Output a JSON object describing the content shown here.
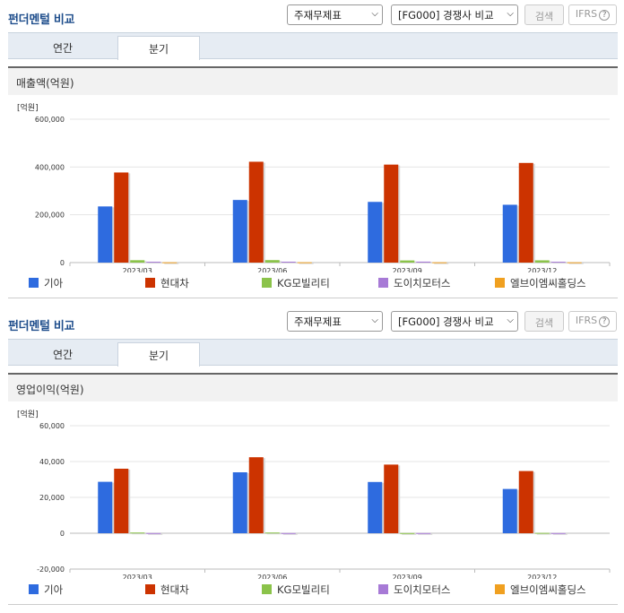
{
  "panels": [
    {
      "title": "펀더멘털 비교",
      "select_statement": "주재무제표",
      "select_group": "[FG000] 경쟁사 비교",
      "search_label": "검색",
      "ifrs_label": "IFRS",
      "help_glyph": "?",
      "tabs": [
        "연간",
        "분기"
      ],
      "active_tab": "분기",
      "metric": "매출액(억원)",
      "unit": "[억원]"
    },
    {
      "title": "펀더멘털 비교",
      "select_statement": "주재무제표",
      "select_group": "[FG000] 경쟁사 비교",
      "search_label": "검색",
      "ifrs_label": "IFRS",
      "help_glyph": "?",
      "tabs": [
        "연간",
        "분기"
      ],
      "active_tab": "분기",
      "metric": "영업이익(억원)",
      "unit": "[억원]"
    }
  ],
  "legend": [
    {
      "name": "기아",
      "color": "#2e6bdf"
    },
    {
      "name": "현대차",
      "color": "#cc3300"
    },
    {
      "name": "KG모빌리티",
      "color": "#8bc34a"
    },
    {
      "name": "도이치모터스",
      "color": "#a77ad6"
    },
    {
      "name": "엘브이엠씨홀딩스",
      "color": "#f0a020"
    }
  ],
  "chart_data": [
    {
      "type": "bar",
      "title": "매출액(억원)",
      "ylabel": "[억원]",
      "categories": [
        "2023/03",
        "2023/06",
        "2023/09",
        "2023/12"
      ],
      "ylim": [
        0,
        600000
      ],
      "yticks": [
        0,
        200000,
        400000,
        600000
      ],
      "ytick_labels": [
        "0",
        "200,000",
        "400,000",
        "600,000"
      ],
      "series": [
        {
          "name": "기아",
          "values": [
            235000,
            262000,
            254000,
            242000
          ]
        },
        {
          "name": "현대차",
          "values": [
            377000,
            422000,
            410000,
            417000
          ]
        },
        {
          "name": "KG모빌리티",
          "values": [
            10000,
            10500,
            9000,
            9500
          ]
        },
        {
          "name": "도이치모터스",
          "values": [
            3500,
            3800,
            4000,
            3500
          ]
        },
        {
          "name": "엘브이엠씨홀딩스",
          "values": [
            1200,
            1300,
            1200,
            1100
          ]
        }
      ]
    },
    {
      "type": "bar",
      "title": "영업이익(억원)",
      "ylabel": "[억원]",
      "categories": [
        "2023/03",
        "2023/06",
        "2023/09",
        "2023/12"
      ],
      "ylim": [
        -20000,
        60000
      ],
      "yticks": [
        -20000,
        0,
        20000,
        40000,
        60000
      ],
      "ytick_labels": [
        "-20,000",
        "0",
        "20,000",
        "40,000",
        "60,000"
      ],
      "series": [
        {
          "name": "기아",
          "values": [
            28700,
            34000,
            28600,
            24700
          ]
        },
        {
          "name": "현대차",
          "values": [
            36000,
            42400,
            38300,
            34700
          ]
        },
        {
          "name": "KG모빌리티",
          "values": [
            400,
            400,
            100,
            200
          ]
        },
        {
          "name": "도이치모터스",
          "values": [
            100,
            100,
            100,
            100
          ]
        },
        {
          "name": "엘브이엠씨홀딩스",
          "values": [
            0,
            0,
            0,
            0
          ]
        }
      ]
    }
  ]
}
